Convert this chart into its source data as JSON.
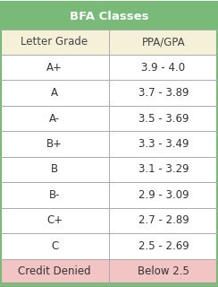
{
  "title": "BFA Classes",
  "col_headers": [
    "Letter Grade",
    "PPA/GPA"
  ],
  "rows": [
    [
      "A+",
      "3.9 - 4.0"
    ],
    [
      "A",
      "3.7 - 3.89"
    ],
    [
      "A-",
      "3.5 - 3.69"
    ],
    [
      "B+",
      "3.3 - 3.49"
    ],
    [
      "B",
      "3.1 - 3.29"
    ],
    [
      "B-",
      "2.9 - 3.09"
    ],
    [
      "C+",
      "2.7 - 2.89"
    ],
    [
      "C",
      "2.5 - 2.69"
    ],
    [
      "Credit Denied",
      "Below 2.5"
    ]
  ],
  "title_bg": "#7aba78",
  "header_bg": "#f5f0d8",
  "normal_bg": "#ffffff",
  "denied_bg": "#f2c4c4",
  "border_color": "#aaaaaa",
  "title_text_color": "#ffffff",
  "header_text_color": "#444444",
  "normal_text_color": "#333333",
  "outer_border_color": "#7aba78",
  "title_fontsize": 9.5,
  "header_fontsize": 8.5,
  "cell_fontsize": 8.5,
  "fig_width": 2.44,
  "fig_height": 3.2,
  "dpi": 100
}
